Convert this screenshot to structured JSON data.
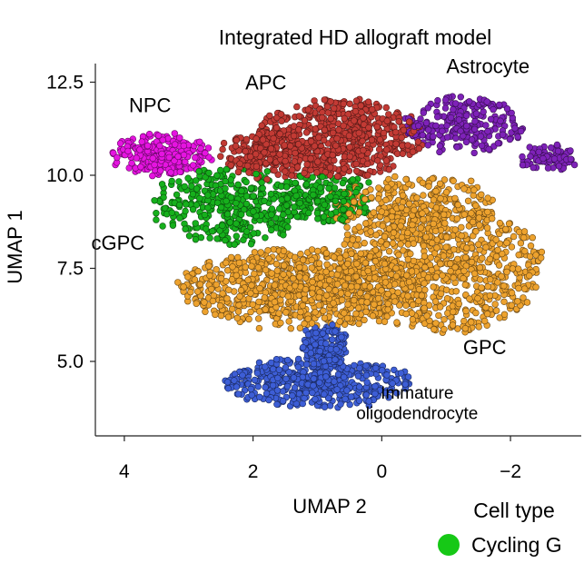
{
  "chart_data": {
    "type": "scatter",
    "title": "Integrated HD allograft model",
    "xlabel": "UMAP 2",
    "ylabel": "UMAP 1",
    "x_reversed": true,
    "xlim": [
      4.45,
      -3.1
    ],
    "ylim": [
      3.0,
      13.0
    ],
    "xticks": [
      4,
      2,
      0,
      -2
    ],
    "xtick_labels": [
      "4",
      "2",
      "0",
      "−2"
    ],
    "yticks": [
      5.0,
      7.5,
      10.0,
      12.5
    ],
    "ytick_labels": [
      "5.0",
      "7.5",
      "10.0",
      "12.5"
    ],
    "grid": false,
    "legend": {
      "title": "Cell type",
      "placement": "bottom-right",
      "entries": [
        {
          "label": "Cycling G",
          "color": "#16c816"
        }
      ]
    },
    "cluster_labels": [
      {
        "text": "NPC",
        "x": 3.6,
        "y": 11.7
      },
      {
        "text": "APC",
        "x": 1.8,
        "y": 12.3
      },
      {
        "text": "Astrocyte",
        "x": -1.65,
        "y": 12.75
      },
      {
        "text": "cGPC",
        "x": 4.1,
        "y": 8.0
      },
      {
        "text": "GPC",
        "x": -1.6,
        "y": 5.2
      },
      {
        "text": "Immature",
        "x": -0.55,
        "y": 4.0
      },
      {
        "text": "oligodendrocyte",
        "x": -0.55,
        "y": 3.45
      }
    ],
    "series": [
      {
        "name": "NPC",
        "color": "#e514e0",
        "n": 230,
        "regions": [
          {
            "cx": 3.45,
            "cy": 10.55,
            "rx": 0.75,
            "ry": 0.55,
            "w": 1
          }
        ]
      },
      {
        "name": "APC",
        "color": "#c23a34",
        "n": 820,
        "regions": [
          {
            "cx": 0.65,
            "cy": 11.0,
            "rx": 1.3,
            "ry": 1.05,
            "w": 3
          },
          {
            "cx": 1.75,
            "cy": 10.55,
            "rx": 0.75,
            "ry": 0.65,
            "w": 1
          }
        ]
      },
      {
        "name": "Astrocyte",
        "color": "#7e22b8",
        "n": 320,
        "regions": [
          {
            "cx": -1.25,
            "cy": 11.35,
            "rx": 0.95,
            "ry": 0.75,
            "w": 3
          },
          {
            "cx": -2.6,
            "cy": 10.45,
            "rx": 0.45,
            "ry": 0.35,
            "w": 1
          }
        ]
      },
      {
        "name": "cGPC",
        "color": "#16b01c",
        "n": 560,
        "regions": [
          {
            "cx": 2.35,
            "cy": 9.2,
            "rx": 1.2,
            "ry": 1.05,
            "w": 2
          },
          {
            "cx": 0.9,
            "cy": 9.4,
            "rx": 0.8,
            "ry": 0.7,
            "w": 1
          }
        ]
      },
      {
        "name": "GPC",
        "color": "#eda22e",
        "n": 1850,
        "regions": [
          {
            "cx": 1.2,
            "cy": 7.0,
            "rx": 1.95,
            "ry": 1.05,
            "w": 3
          },
          {
            "cx": -0.9,
            "cy": 7.55,
            "rx": 1.6,
            "ry": 1.75,
            "w": 3
          },
          {
            "cx": -0.5,
            "cy": 9.1,
            "rx": 1.3,
            "ry": 0.9,
            "w": 1
          }
        ]
      },
      {
        "name": "Immature oligodendrocyte",
        "color": "#3d5ed6",
        "n": 620,
        "regions": [
          {
            "cx": 1.0,
            "cy": 4.45,
            "rx": 1.45,
            "ry": 0.65,
            "w": 3
          },
          {
            "cx": 0.9,
            "cy": 5.4,
            "rx": 0.35,
            "ry": 0.6,
            "w": 1
          }
        ]
      }
    ]
  }
}
